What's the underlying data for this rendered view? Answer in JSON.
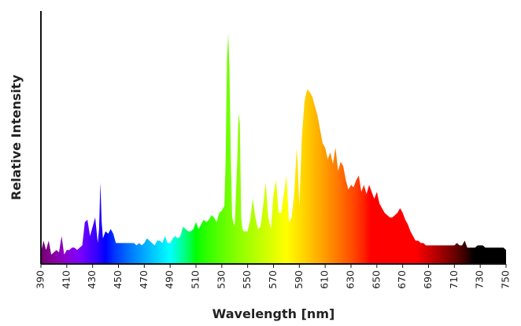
{
  "chart_data": {
    "type": "area",
    "title": "",
    "xlabel": "Wavelength [nm]",
    "ylabel": "Relative Intensity",
    "xlim": [
      390,
      750
    ],
    "ylim": [
      0,
      100
    ],
    "grid": false,
    "x_ticks": [
      390,
      410,
      430,
      450,
      470,
      490,
      510,
      530,
      550,
      570,
      590,
      610,
      630,
      650,
      670,
      690,
      710,
      730,
      750
    ],
    "x_tick_labels": [
      "390",
      "410",
      "430",
      "450",
      "470",
      "490",
      "510",
      "530",
      "550",
      "570",
      "590",
      "610",
      "630",
      "650",
      "670",
      "690",
      "710",
      "730",
      "750"
    ],
    "series": [
      {
        "x": [
          390,
          392,
          394,
          396,
          398,
          400,
          402,
          404,
          406,
          408,
          410,
          412,
          414,
          416,
          418,
          420,
          422,
          424,
          426,
          428,
          430,
          432,
          434,
          435,
          436,
          437,
          438,
          440,
          442,
          444,
          446,
          448,
          450,
          452,
          454,
          456,
          458,
          460,
          462,
          464,
          466,
          468,
          470,
          472,
          474,
          476,
          478,
          480,
          482,
          484,
          486,
          488,
          490,
          492,
          494,
          496,
          498,
          500,
          502,
          504,
          506,
          508,
          510,
          512,
          514,
          516,
          518,
          520,
          522,
          524,
          526,
          528,
          530,
          532,
          533,
          534,
          535,
          536,
          537,
          538,
          540,
          542,
          543,
          544,
          545,
          546,
          547,
          548,
          550,
          552,
          554,
          556,
          558,
          560,
          562,
          564,
          566,
          568,
          570,
          572,
          574,
          576,
          578,
          580,
          582,
          584,
          586,
          588,
          589,
          590,
          592,
          594,
          596,
          598,
          600,
          602,
          604,
          606,
          608,
          610,
          612,
          614,
          616,
          618,
          620,
          622,
          624,
          626,
          628,
          630,
          632,
          634,
          636,
          638,
          640,
          642,
          644,
          646,
          648,
          650,
          652,
          654,
          656,
          658,
          660,
          662,
          664,
          666,
          668,
          670,
          672,
          674,
          676,
          678,
          680,
          682,
          684,
          686,
          688,
          690,
          692,
          694,
          696,
          698,
          700,
          702,
          704,
          706,
          708,
          710,
          712,
          714,
          716,
          718,
          720,
          722,
          724,
          726,
          728,
          730,
          732,
          734,
          736,
          738,
          740,
          742,
          744,
          746,
          748,
          750
        ],
        "y": [
          5,
          10,
          6,
          10,
          4,
          5,
          6,
          5,
          12,
          4,
          6,
          6,
          7,
          7,
          6,
          7,
          8,
          18,
          19,
          12,
          16,
          20,
          9,
          15,
          35,
          18,
          11,
          14,
          13,
          15,
          13,
          9,
          9,
          9,
          9,
          9,
          9,
          9,
          9,
          8,
          9,
          8,
          9,
          11,
          10,
          9,
          8,
          10,
          10,
          9,
          12,
          9,
          9,
          11,
          12,
          11,
          12,
          16,
          15,
          14,
          14,
          15,
          18,
          15,
          17,
          19,
          18,
          19,
          21,
          20,
          18,
          22,
          23,
          25,
          45,
          88,
          99,
          82,
          45,
          20,
          16,
          45,
          65,
          60,
          20,
          15,
          14,
          14,
          14,
          19,
          28,
          20,
          15,
          16,
          25,
          35,
          20,
          15,
          30,
          36,
          22,
          22,
          30,
          38,
          18,
          20,
          30,
          50,
          40,
          25,
          55,
          70,
          75,
          74,
          72,
          68,
          64,
          58,
          52,
          50,
          45,
          48,
          43,
          50,
          40,
          44,
          42,
          36,
          32,
          34,
          33,
          36,
          38,
          31,
          34,
          30,
          34,
          31,
          28,
          31,
          26,
          24,
          22,
          21,
          20,
          20,
          21,
          22,
          24,
          22,
          19,
          17,
          14,
          12,
          10,
          10,
          9,
          9,
          8,
          8,
          8,
          8,
          8,
          8,
          8,
          8,
          8,
          8,
          8,
          8,
          9,
          8,
          8,
          10,
          7,
          7,
          7,
          7,
          8,
          8,
          8,
          7,
          7,
          7,
          7,
          7,
          7,
          7,
          7,
          6
        ]
      }
    ]
  }
}
